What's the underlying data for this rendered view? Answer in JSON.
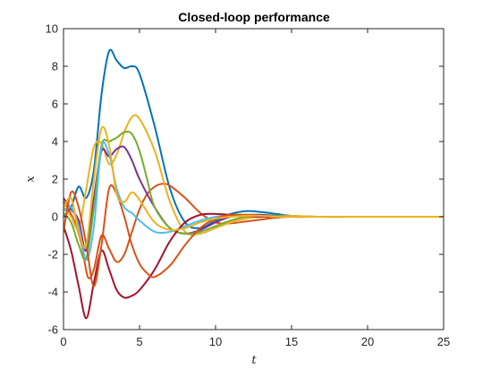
{
  "chart_data": {
    "type": "line",
    "title": "Closed-loop performance",
    "xlabel": "t",
    "ylabel": "x",
    "xlim": [
      0,
      25
    ],
    "ylim": [
      -6,
      10
    ],
    "xticks": [
      0,
      5,
      10,
      15,
      20,
      25
    ],
    "yticks": [
      -6,
      -4,
      -2,
      0,
      2,
      4,
      6,
      8,
      10
    ],
    "grid": false,
    "legend": "none",
    "series": [
      {
        "color": "#0072BD",
        "x": [
          0,
          0.5,
          1,
          1.5,
          2,
          2.5,
          3,
          3.5,
          4,
          4.5,
          5,
          6,
          7,
          8,
          9,
          10,
          11,
          12,
          13,
          14,
          15,
          17,
          20,
          25
        ],
        "y": [
          0,
          0.5,
          1.6,
          1.0,
          2.5,
          6.5,
          8.8,
          8.3,
          7.9,
          8.0,
          7.6,
          4.8,
          1.5,
          -0.3,
          -0.6,
          -0.2,
          0.15,
          0.3,
          0.25,
          0.15,
          0.05,
          0,
          0,
          0
        ]
      },
      {
        "color": "#D95319",
        "x": [
          0,
          0.4,
          0.8,
          1.2,
          1.6,
          2,
          2.5,
          3,
          3.5,
          4,
          4.5,
          5,
          5.5,
          6,
          6.5,
          7,
          8,
          9,
          10,
          11,
          12,
          13,
          14,
          15,
          17,
          20,
          25
        ],
        "y": [
          0.8,
          0.3,
          -0.4,
          -1.5,
          -3.2,
          -2.8,
          -1.0,
          -1.7,
          -2.4,
          -2.0,
          -0.8,
          0.4,
          1.2,
          1.6,
          1.75,
          1.65,
          1.0,
          0.2,
          -0.3,
          -0.35,
          -0.25,
          -0.15,
          -0.05,
          0,
          0,
          0,
          0
        ]
      },
      {
        "color": "#EDB120",
        "x": [
          0,
          0.5,
          1,
          1.5,
          2,
          2.5,
          3,
          3.5,
          4,
          4.5,
          5,
          6,
          7,
          8,
          9,
          10,
          11,
          12,
          13,
          14,
          15,
          17,
          20,
          25
        ],
        "y": [
          0.5,
          0,
          -0.6,
          1.5,
          3.7,
          3.9,
          2.8,
          3.3,
          4.5,
          5.3,
          5.2,
          3.5,
          0.8,
          -0.8,
          -0.9,
          -0.6,
          -0.3,
          -0.1,
          0,
          0.05,
          0.05,
          0,
          0,
          0
        ]
      },
      {
        "color": "#7E2F8E",
        "x": [
          0,
          0.5,
          1,
          1.5,
          2,
          2.5,
          3,
          3.5,
          4,
          4.5,
          5,
          6,
          7,
          8,
          9,
          10,
          11,
          12,
          13,
          14,
          15,
          17,
          20,
          25
        ],
        "y": [
          1.0,
          0.4,
          -0.2,
          -1.8,
          1.0,
          3.5,
          3.2,
          3.6,
          3.7,
          3.0,
          2.0,
          0.5,
          -0.6,
          -0.9,
          -0.7,
          -0.3,
          0,
          0.1,
          0.1,
          0.05,
          0,
          0,
          0,
          0
        ]
      },
      {
        "color": "#77AC30",
        "x": [
          0,
          0.5,
          1,
          1.5,
          2,
          2.5,
          3,
          3.5,
          4,
          4.5,
          5,
          5.5,
          6,
          7,
          8,
          9,
          10,
          11,
          12,
          13,
          14,
          15,
          17,
          20,
          25
        ],
        "y": [
          0.2,
          -0.3,
          -1.5,
          -2.2,
          0.5,
          3.8,
          4.0,
          4.2,
          4.5,
          4.4,
          3.5,
          2.0,
          0.5,
          -0.6,
          -0.9,
          -0.8,
          -0.5,
          -0.2,
          0,
          0.05,
          0.05,
          0,
          0,
          0,
          0
        ]
      },
      {
        "color": "#4DBEEE",
        "x": [
          0,
          0.5,
          1,
          1.5,
          2,
          2.5,
          3,
          3.5,
          4,
          4.5,
          5,
          6,
          7,
          8,
          9,
          10,
          11,
          12,
          13,
          14,
          15,
          17,
          20,
          25
        ],
        "y": [
          0.3,
          0.5,
          -0.5,
          -2.3,
          -0.5,
          3.7,
          3.3,
          1.5,
          0.5,
          0.2,
          -0.2,
          -0.8,
          -0.8,
          -0.5,
          -0.2,
          0,
          0.1,
          0.1,
          0.05,
          0,
          0,
          0,
          0,
          0
        ]
      },
      {
        "color": "#A2142F",
        "x": [
          0,
          0.5,
          1,
          1.5,
          2,
          2.5,
          3,
          3.5,
          4,
          4.5,
          5,
          6,
          7,
          8,
          9,
          10,
          11,
          12,
          13,
          14,
          15,
          17,
          20,
          25
        ],
        "y": [
          -0.5,
          -1.8,
          -3.7,
          -5.4,
          -3.5,
          -1.8,
          -2.8,
          -3.9,
          -4.3,
          -4.2,
          -3.9,
          -2.8,
          -1.3,
          -0.3,
          0.1,
          0.15,
          0.1,
          0.05,
          0,
          0,
          0,
          0,
          0,
          0
        ]
      },
      {
        "color": "#D95319",
        "x": [
          0,
          0.5,
          1,
          1.5,
          2,
          2.5,
          3,
          3.5,
          4,
          4.5,
          5,
          5.5,
          6,
          7,
          8,
          9,
          10,
          11,
          12,
          13,
          14,
          15,
          17,
          20,
          25
        ],
        "y": [
          -0.8,
          1.3,
          0.5,
          -1.5,
          -3.7,
          -1.5,
          1.5,
          1.2,
          0,
          -1.5,
          -2.5,
          -3.0,
          -3.2,
          -2.6,
          -1.5,
          -0.6,
          -0.1,
          0.1,
          0.1,
          0.05,
          0,
          0,
          0,
          0,
          0
        ]
      },
      {
        "color": "#EDB120",
        "x": [
          0,
          0.5,
          1,
          1.5,
          2,
          2.5,
          3,
          3.5,
          4,
          4.5,
          5,
          6,
          7,
          8,
          9,
          10,
          11,
          12,
          13,
          14,
          15,
          17,
          20,
          25
        ],
        "y": [
          0.4,
          1.0,
          -0.8,
          -1.5,
          2.0,
          4.7,
          3.8,
          1.2,
          0.8,
          1.3,
          0.9,
          -0.3,
          -0.7,
          -0.6,
          -0.3,
          -0.1,
          0,
          0.05,
          0.05,
          0,
          0,
          0,
          0,
          0
        ]
      }
    ]
  }
}
